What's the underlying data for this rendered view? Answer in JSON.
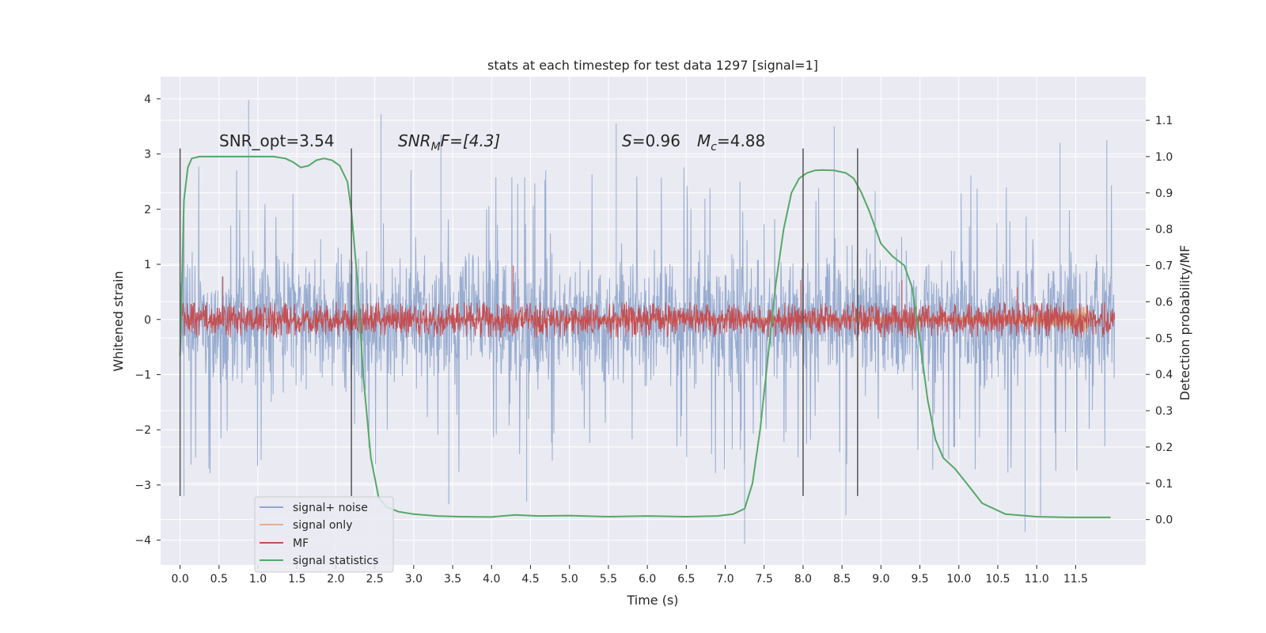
{
  "chart_data": {
    "type": "line",
    "title": "stats at each timestep for test data 1297 [signal=1]",
    "xlabel": "Time (s)",
    "ylabel": "Whitened strain",
    "y2label": "Detection probability/MF",
    "xlim": [
      -0.25,
      12.4
    ],
    "ylim": [
      -4.45,
      4.4
    ],
    "y2lim": [
      -0.125,
      1.22
    ],
    "xticks": [
      0.0,
      0.5,
      1.0,
      1.5,
      2.0,
      2.5,
      3.0,
      3.5,
      4.0,
      4.5,
      5.0,
      5.5,
      6.0,
      6.5,
      7.0,
      7.5,
      8.0,
      8.5,
      9.0,
      9.5,
      10.0,
      10.5,
      11.0,
      11.5
    ],
    "xtick_labels": [
      "0.0",
      "0.5",
      "1.0",
      "1.5",
      "2.0",
      "2.5",
      "3.0",
      "3.5",
      "4.0",
      "4.5",
      "5.0",
      "5.5",
      "6.0",
      "6.5",
      "7.0",
      "7.5",
      "8.0",
      "8.5",
      "9.0",
      "9.5",
      "10.0",
      "10.5",
      "11.0",
      "11.5"
    ],
    "yticks": [
      -4,
      -3,
      -2,
      -1,
      0,
      1,
      2,
      3,
      4
    ],
    "ytick_labels": [
      "−4",
      "−3",
      "−2",
      "−1",
      "0",
      "1",
      "2",
      "3",
      "4"
    ],
    "y2ticks": [
      0.0,
      0.1,
      0.2,
      0.3,
      0.4,
      0.5,
      0.6,
      0.7,
      0.8,
      0.9,
      1.0,
      1.1
    ],
    "y2tick_labels": [
      "0.0",
      "0.1",
      "0.2",
      "0.3",
      "0.4",
      "0.5",
      "0.6",
      "0.7",
      "0.8",
      "0.9",
      "1.0",
      "1.1"
    ],
    "grid": true,
    "legend_position": "bottom-left",
    "annotations": {
      "snr_opt": "SNR_opt=3.54",
      "snr_mf_pre": "SNR",
      "snr_mf_sub": "M",
      "snr_mf_post": "F=[4.3]",
      "s_label": "S",
      "s_value": "=0.96",
      "mc_label": "M",
      "mc_sub": "c",
      "mc_value": "=4.88"
    },
    "vertical_markers": [
      0.0,
      2.2,
      8.0,
      8.7
    ],
    "series": [
      {
        "name": "signal+ noise",
        "color": "#8fa5cc",
        "axis": "left",
        "style": "noise-band",
        "x_range": [
          0.0,
          12.0
        ],
        "envelope_upper": 2.0,
        "envelope_lower": -2.2,
        "peaks": [
          {
            "x": 0.88,
            "y": 3.98
          },
          {
            "x": 2.58,
            "y": 3.72
          },
          {
            "x": 3.35,
            "y": 3.35
          },
          {
            "x": 5.6,
            "y": 3.55
          },
          {
            "x": 8.4,
            "y": 3.5
          },
          {
            "x": 11.3,
            "y": 3.2
          },
          {
            "x": 11.9,
            "y": 3.25
          },
          {
            "x": 0.05,
            "y": -3.2
          },
          {
            "x": 3.45,
            "y": -3.35
          },
          {
            "x": 4.45,
            "y": -3.3
          },
          {
            "x": 7.25,
            "y": -4.07
          },
          {
            "x": 8.55,
            "y": -3.55
          },
          {
            "x": 10.85,
            "y": -3.85
          },
          {
            "x": 11.05,
            "y": -3.55
          }
        ]
      },
      {
        "name": "signal only",
        "color": "#dd8452",
        "axis": "left",
        "style": "chirp",
        "x": [
          0.0,
          2.0,
          4.0,
          6.0,
          8.0,
          9.0,
          10.0,
          10.5,
          11.0,
          11.3,
          11.5,
          11.65
        ],
        "amplitude": [
          0.01,
          0.01,
          0.015,
          0.02,
          0.03,
          0.04,
          0.05,
          0.07,
          0.1,
          0.14,
          0.2,
          0.26
        ]
      },
      {
        "name": "MF",
        "color": "#c44e52",
        "axis": "right",
        "style": "noise-band",
        "x_range": [
          0.0,
          12.0
        ],
        "envelope_upper": 0.6,
        "envelope_lower": 0.5,
        "peaks": [
          {
            "x": 4.28,
            "y": 0.7
          },
          {
            "x": 9.27,
            "y": 0.66
          },
          {
            "x": 0.55,
            "y": 0.67
          },
          {
            "x": 7.97,
            "y": 0.66
          },
          {
            "x": 10.75,
            "y": 0.64
          }
        ]
      },
      {
        "name": "signal statistics",
        "color": "#55a868",
        "axis": "right",
        "style": "line",
        "x": [
          0.0,
          0.05,
          0.1,
          0.15,
          0.25,
          0.4,
          0.6,
          0.8,
          1.0,
          1.2,
          1.35,
          1.45,
          1.55,
          1.65,
          1.75,
          1.85,
          1.95,
          2.05,
          2.15,
          2.2,
          2.28,
          2.35,
          2.45,
          2.55,
          2.65,
          2.8,
          3.0,
          3.3,
          3.6,
          4.0,
          4.3,
          4.6,
          5.0,
          5.5,
          6.0,
          6.5,
          6.9,
          7.1,
          7.25,
          7.35,
          7.45,
          7.55,
          7.65,
          7.75,
          7.85,
          7.95,
          8.05,
          8.15,
          8.25,
          8.4,
          8.55,
          8.65,
          8.75,
          8.85,
          9.0,
          9.15,
          9.3,
          9.4,
          9.5,
          9.6,
          9.7,
          9.8,
          9.95,
          10.1,
          10.3,
          10.6,
          11.0,
          11.4,
          11.7,
          11.95
        ],
        "y": [
          0.45,
          0.88,
          0.97,
          0.995,
          1.0,
          1.0,
          1.0,
          1.0,
          1.0,
          1.0,
          0.995,
          0.985,
          0.97,
          0.975,
          0.99,
          0.995,
          0.99,
          0.975,
          0.93,
          0.85,
          0.65,
          0.4,
          0.17,
          0.06,
          0.035,
          0.022,
          0.015,
          0.01,
          0.008,
          0.007,
          0.013,
          0.01,
          0.011,
          0.008,
          0.01,
          0.008,
          0.01,
          0.015,
          0.03,
          0.1,
          0.25,
          0.45,
          0.65,
          0.8,
          0.9,
          0.94,
          0.955,
          0.962,
          0.963,
          0.962,
          0.955,
          0.94,
          0.9,
          0.85,
          0.76,
          0.725,
          0.7,
          0.64,
          0.49,
          0.33,
          0.22,
          0.17,
          0.14,
          0.1,
          0.045,
          0.015,
          0.008,
          0.006,
          0.006,
          0.006
        ]
      }
    ]
  }
}
